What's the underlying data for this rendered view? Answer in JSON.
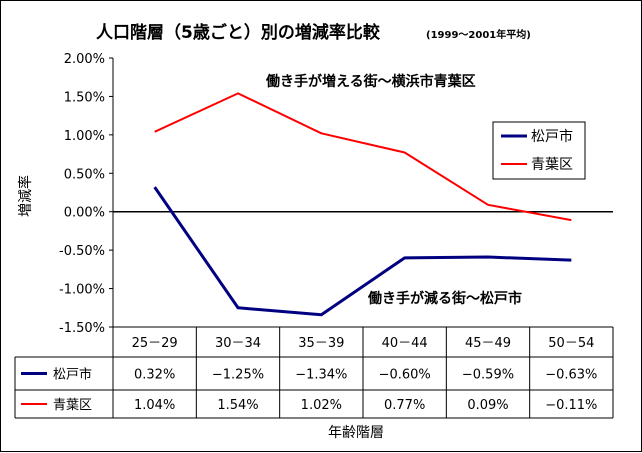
{
  "chart_data": {
    "type": "line",
    "title": "人口階層（5歳ごと）別の増減率比較",
    "subtitle": "(1999〜2001年平均)",
    "xlabel": "年齢階層",
    "ylabel": "増減率",
    "categories": [
      "25－29",
      "30－34",
      "35－39",
      "40－44",
      "45－49",
      "50－54"
    ],
    "yticks": [
      "2.00%",
      "1.50%",
      "1.00%",
      "0.50%",
      "0.00%",
      "-0.50%",
      "-1.00%",
      "-1.50%"
    ],
    "ylim": [
      -1.5,
      2.0
    ],
    "grid": false,
    "legend_position": "right",
    "series": [
      {
        "name": "松戸市",
        "color": "#000080",
        "values": [
          0.32,
          -1.25,
          -1.34,
          -0.6,
          -0.59,
          -0.63
        ],
        "labels": [
          "0.32%",
          "−1.25%",
          "−1.34%",
          "−0.60%",
          "−0.59%",
          "−0.63%"
        ]
      },
      {
        "name": "青葉区",
        "color": "#ff0000",
        "values": [
          1.04,
          1.54,
          1.02,
          0.77,
          0.09,
          -0.11
        ],
        "labels": [
          "1.04%",
          "1.54%",
          "1.02%",
          "0.77%",
          "0.09%",
          "−0.11%"
        ]
      }
    ],
    "annotations": [
      {
        "text": "働き手が増える街〜横浜市青葉区"
      },
      {
        "text": "働き手が減る街〜松戸市"
      }
    ]
  }
}
